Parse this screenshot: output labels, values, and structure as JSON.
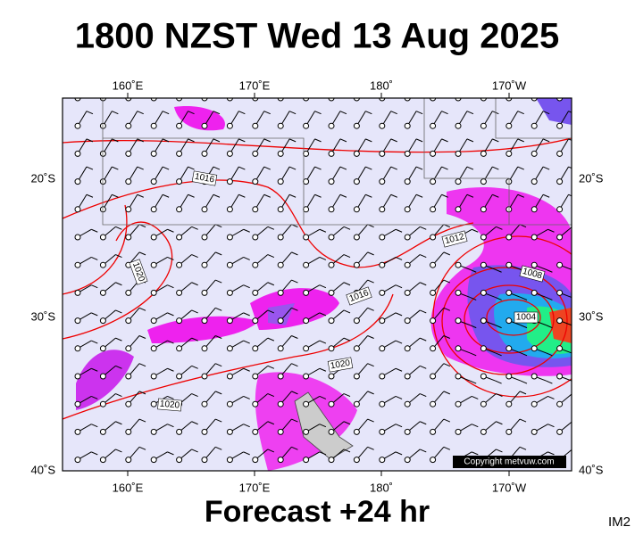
{
  "header": {
    "title": "1800 NZST Wed 13 Aug 2025"
  },
  "map": {
    "lon_labels_top": [
      "160˚E",
      "170˚E",
      "180˚",
      "170˚W"
    ],
    "lon_labels_bottom": [
      "160˚E",
      "170˚E",
      "180˚",
      "170˚W"
    ],
    "lat_labels_left": [
      "20˚S",
      "30˚S",
      "40˚S"
    ],
    "lat_labels_right": [
      "20˚S",
      "30˚S",
      "40˚S"
    ],
    "isobar_labels": [
      "1016",
      "1012",
      "1008",
      "1004",
      "1020",
      "1016",
      "1020",
      "1020"
    ],
    "copyright": "Copyright metvuw.com"
  },
  "footer": {
    "forecast": "Forecast +24 hr",
    "id": "IM2"
  }
}
